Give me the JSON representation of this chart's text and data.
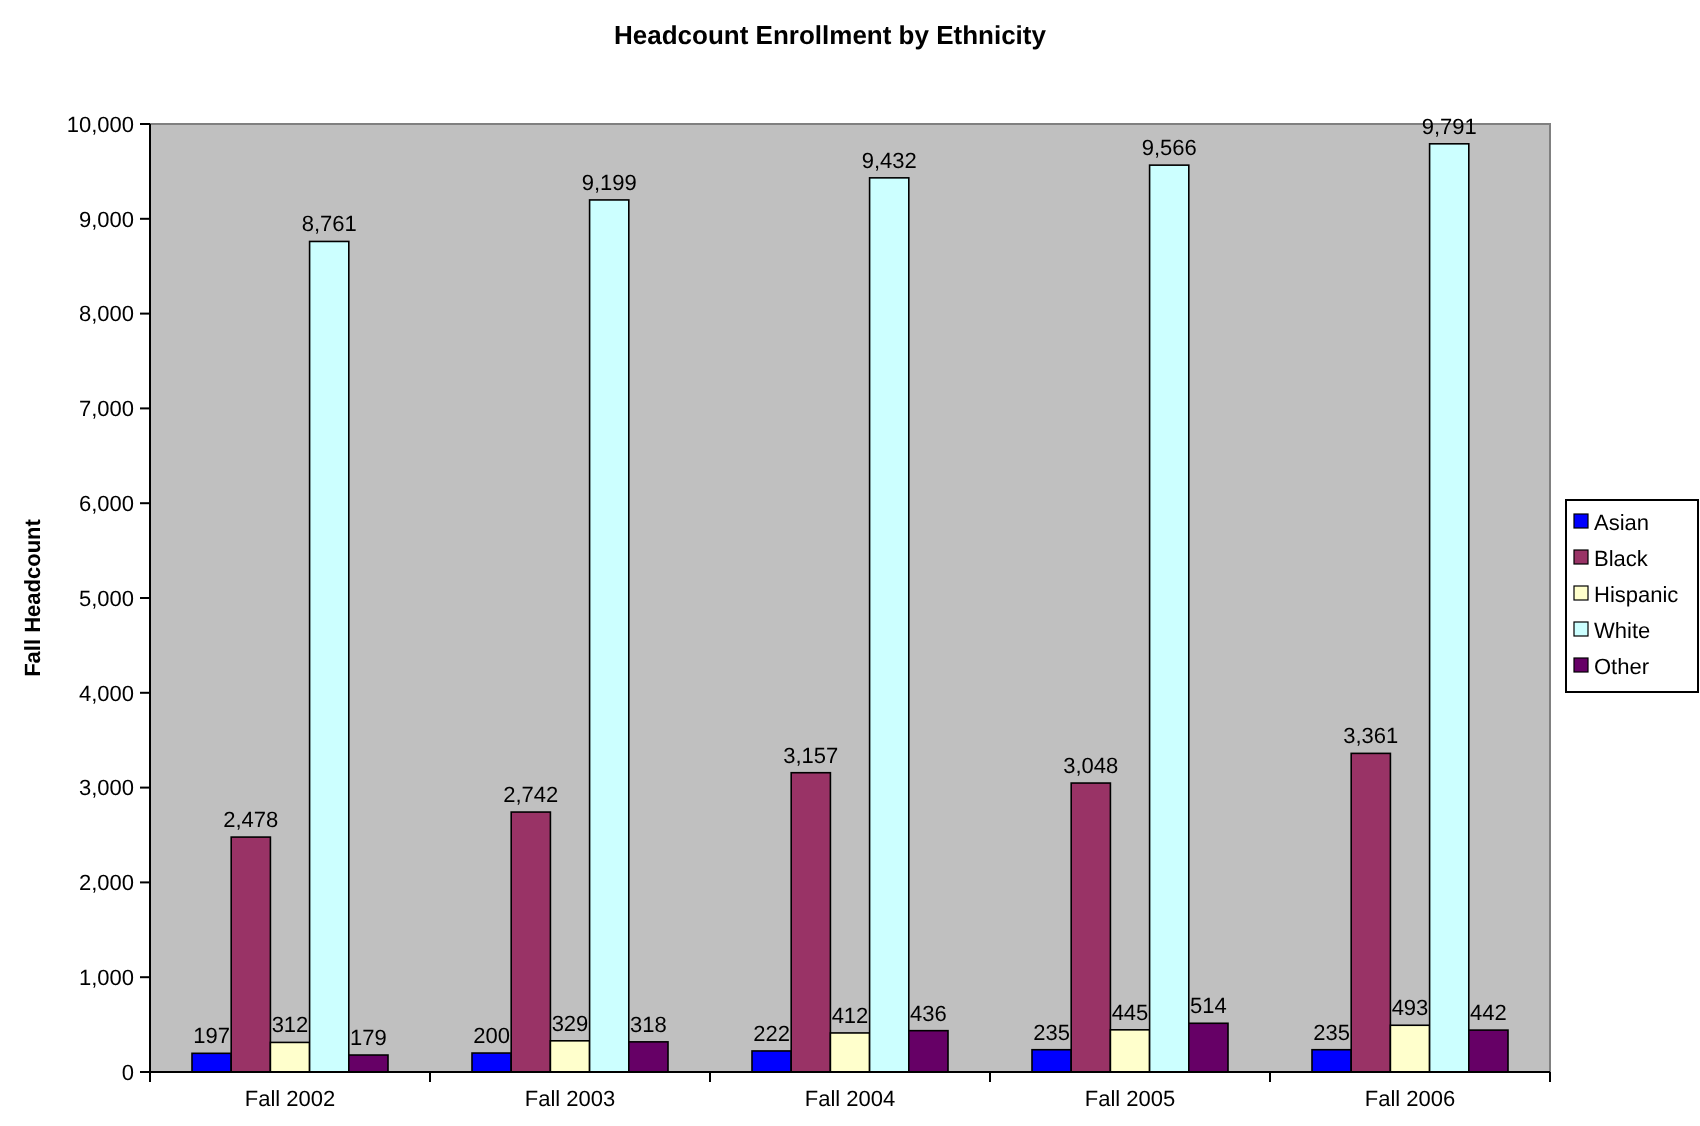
{
  "chart_data": {
    "type": "bar",
    "title": "Headcount Enrollment by Ethnicity",
    "ylabel": "Fall Headcount",
    "categories": [
      "Fall 2002",
      "Fall 2003",
      "Fall 2004",
      "Fall 2005",
      "Fall 2006"
    ],
    "series": [
      {
        "name": "Asian",
        "color": "#0000ff",
        "values": [
          197,
          200,
          222,
          235,
          235
        ],
        "value_labels": [
          "197",
          "200",
          "222",
          "235",
          "235"
        ]
      },
      {
        "name": "Black",
        "color": "#993366",
        "values": [
          2478,
          2742,
          3157,
          3048,
          3361
        ],
        "value_labels": [
          "2,478",
          "2,742",
          "3,157",
          "3,048",
          "3,361"
        ]
      },
      {
        "name": "Hispanic",
        "color": "#ffffcc",
        "values": [
          312,
          329,
          412,
          445,
          493
        ],
        "value_labels": [
          "312",
          "329",
          "412",
          "445",
          "493"
        ]
      },
      {
        "name": "White",
        "color": "#ccffff",
        "values": [
          8761,
          9199,
          9432,
          9566,
          9791
        ],
        "value_labels": [
          "8,761",
          "9,199",
          "9,432",
          "9,566",
          "9,791"
        ]
      },
      {
        "name": "Other",
        "color": "#660066",
        "values": [
          179,
          318,
          436,
          514,
          442
        ],
        "value_labels": [
          "179",
          "318",
          "436",
          "514",
          "442"
        ]
      }
    ],
    "ylim": [
      0,
      10000
    ],
    "yticks": [
      {
        "value": 0,
        "label": "0"
      },
      {
        "value": 1000,
        "label": "1,000"
      },
      {
        "value": 2000,
        "label": "2,000"
      },
      {
        "value": 3000,
        "label": "3,000"
      },
      {
        "value": 4000,
        "label": "4,000"
      },
      {
        "value": 5000,
        "label": "5,000"
      },
      {
        "value": 6000,
        "label": "6,000"
      },
      {
        "value": 7000,
        "label": "7,000"
      },
      {
        "value": 8000,
        "label": "8,000"
      },
      {
        "value": 9000,
        "label": "9,000"
      },
      {
        "value": 10000,
        "label": "10,000"
      }
    ],
    "legend": "right",
    "grid": false
  }
}
